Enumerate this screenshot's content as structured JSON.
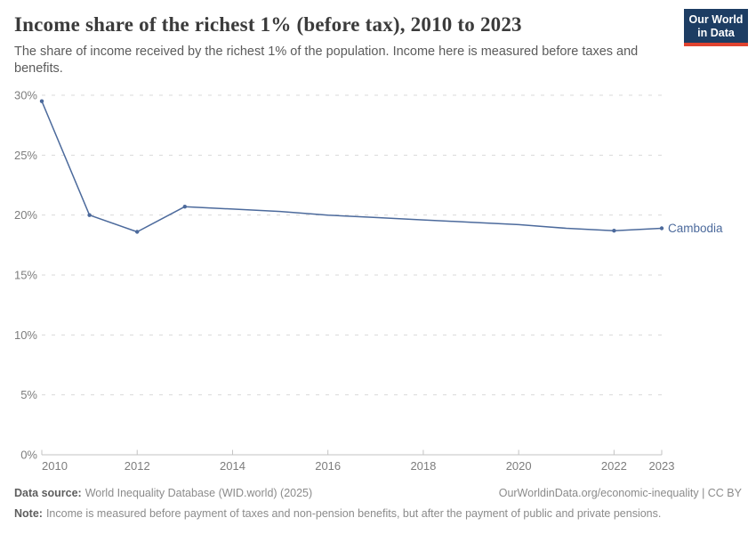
{
  "header": {
    "title": "Income share of the richest 1% (before tax), 2010 to 2023",
    "subtitle": "The share of income received by the richest 1% of the population. Income here is measured before taxes and benefits.",
    "logo": {
      "line1": "Our World",
      "line2": "in Data"
    }
  },
  "chart_data": {
    "type": "line",
    "title": "Income share of the richest 1% (before tax), 2010 to 2023",
    "xlabel": "",
    "ylabel": "",
    "x": [
      2010,
      2011,
      2012,
      2013,
      2014,
      2015,
      2016,
      2017,
      2018,
      2019,
      2020,
      2021,
      2022,
      2023
    ],
    "series": [
      {
        "name": "Cambodia",
        "color": "#4C6A9C",
        "values": [
          29.5,
          20.0,
          18.6,
          20.7,
          20.5,
          20.3,
          20.0,
          19.8,
          19.6,
          19.4,
          19.2,
          18.9,
          18.7,
          18.9
        ]
      }
    ],
    "ylim": [
      0,
      30
    ],
    "y_ticks": [
      {
        "value": 0,
        "label": "0%"
      },
      {
        "value": 5,
        "label": "5%"
      },
      {
        "value": 10,
        "label": "10%"
      },
      {
        "value": 15,
        "label": "15%"
      },
      {
        "value": 20,
        "label": "20%"
      },
      {
        "value": 25,
        "label": "25%"
      },
      {
        "value": 30,
        "label": "30%"
      }
    ],
    "x_ticks": [
      {
        "value": 2010,
        "label": "2010"
      },
      {
        "value": 2012,
        "label": "2012"
      },
      {
        "value": 2014,
        "label": "2014"
      },
      {
        "value": 2016,
        "label": "2016"
      },
      {
        "value": 2018,
        "label": "2018"
      },
      {
        "value": 2020,
        "label": "2020"
      },
      {
        "value": 2022,
        "label": "2022"
      },
      {
        "value": 2023,
        "label": "2023"
      }
    ],
    "marker_years": [
      2010,
      2011,
      2012,
      2013,
      2022,
      2023
    ],
    "grid": "horizontal-dashed",
    "legend": "entity label at right end of line"
  },
  "footer": {
    "sources_label": "Data source:",
    "sources_text": "World Inequality Database (WID.world) (2025)",
    "link_text": "OurWorldinData.org/economic-inequality | CC BY",
    "note_label": "Note:",
    "note_text": "Income is measured before payment of taxes and non-pension benefits, but after the payment of public and private pensions."
  },
  "colors": {
    "series": "#4C6A9C",
    "logo_bg": "#1d3d63",
    "logo_accent": "#e0432f",
    "grid": "#d9d9d9",
    "axis": "#c3c3c3",
    "tick_text": "#7d7d7d"
  }
}
